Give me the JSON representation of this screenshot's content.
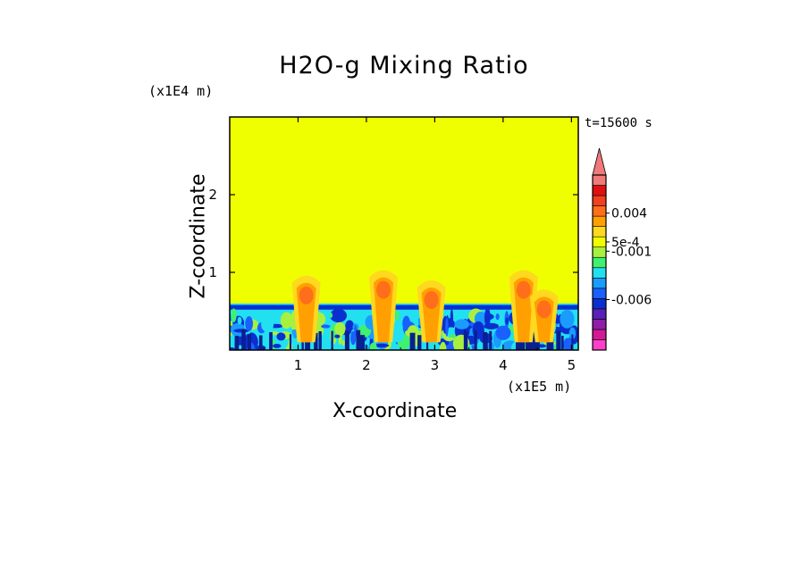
{
  "chart_data": {
    "type": "heatmap",
    "title": "H2O-g Mixing Ratio",
    "xlabel": "X-coordinate",
    "ylabel": "Z-coordinate",
    "x_scale_label": "(x1E5 m)",
    "y_scale_label": "(x1E4 m)",
    "time_label": "t=15600 s",
    "xlim": [
      0,
      5.1
    ],
    "ylim": [
      0,
      3.0
    ],
    "x_ticks": [
      "1",
      "2",
      "3",
      "4",
      "5"
    ],
    "y_ticks": [
      "1",
      "2"
    ],
    "colorbar": {
      "colors": [
        "#ff3fc8",
        "#d21a96",
        "#8f1ea8",
        "#5a1fb8",
        "#0a2fd0",
        "#1a60ff",
        "#1a9cff",
        "#22e0f0",
        "#40f070",
        "#a8f040",
        "#f0ff00",
        "#ffd820",
        "#ffa000",
        "#ff6e1a",
        "#f04020",
        "#e01010",
        "#f07a7a"
      ],
      "labels": [
        "0.004",
        "5e-4",
        "-0.001",
        "-0.006"
      ],
      "extend": "max"
    },
    "background_color": "#f0ff00",
    "bands": [
      {
        "z_top": 0.6,
        "color": "#22e0f0"
      },
      {
        "z_top": 0.58,
        "color": "#0a2fd0"
      },
      {
        "z_top": 0.52,
        "color": "#22e0f0"
      }
    ],
    "plumes": [
      {
        "x": 1.12,
        "z_top": 0.98,
        "color": "#ff6e1a"
      },
      {
        "x": 2.25,
        "z_top": 1.05,
        "color": "#ff6e1a"
      },
      {
        "x": 2.95,
        "z_top": 0.92,
        "color": "#ff6e1a"
      },
      {
        "x": 4.3,
        "z_top": 1.05,
        "color": "#ff6e1a"
      },
      {
        "x": 4.6,
        "z_top": 0.8,
        "color": "#ff6e1a"
      }
    ]
  }
}
